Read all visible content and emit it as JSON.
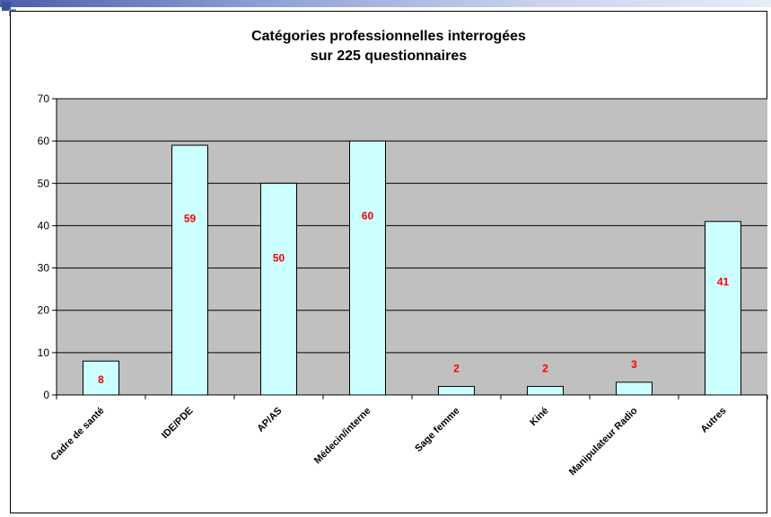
{
  "chart_data": {
    "type": "bar",
    "title_line1": "Catégories professionnelles interrogées",
    "title_line2": "sur 225 questionnaires",
    "categories": [
      "Cadre de santé",
      "IDE/PDE",
      "AP/AS",
      "Médecin/interne",
      "Sage femme",
      "Kiné",
      "Manipulateur Radio",
      "Autres"
    ],
    "values": [
      8,
      59,
      50,
      60,
      2,
      2,
      3,
      41
    ],
    "data_labels": [
      "8",
      "59",
      "50",
      "60",
      "2",
      "2",
      "3",
      "41"
    ],
    "ylim": [
      0,
      70
    ],
    "y_ticks": [
      0,
      10,
      20,
      30,
      40,
      50,
      60,
      70
    ],
    "y_tick_labels": [
      "0",
      "10",
      "20",
      "30",
      "40",
      "50",
      "60",
      "70"
    ],
    "grid": true,
    "legend": "none",
    "xlabel": "",
    "ylabel": ""
  },
  "colors": {
    "plot_background": "#c0c0c0",
    "bar_fill": "#ccffff",
    "bar_stroke": "#000000",
    "data_label": "#ff0000",
    "gridline": "#000000",
    "text": "#000000"
  }
}
